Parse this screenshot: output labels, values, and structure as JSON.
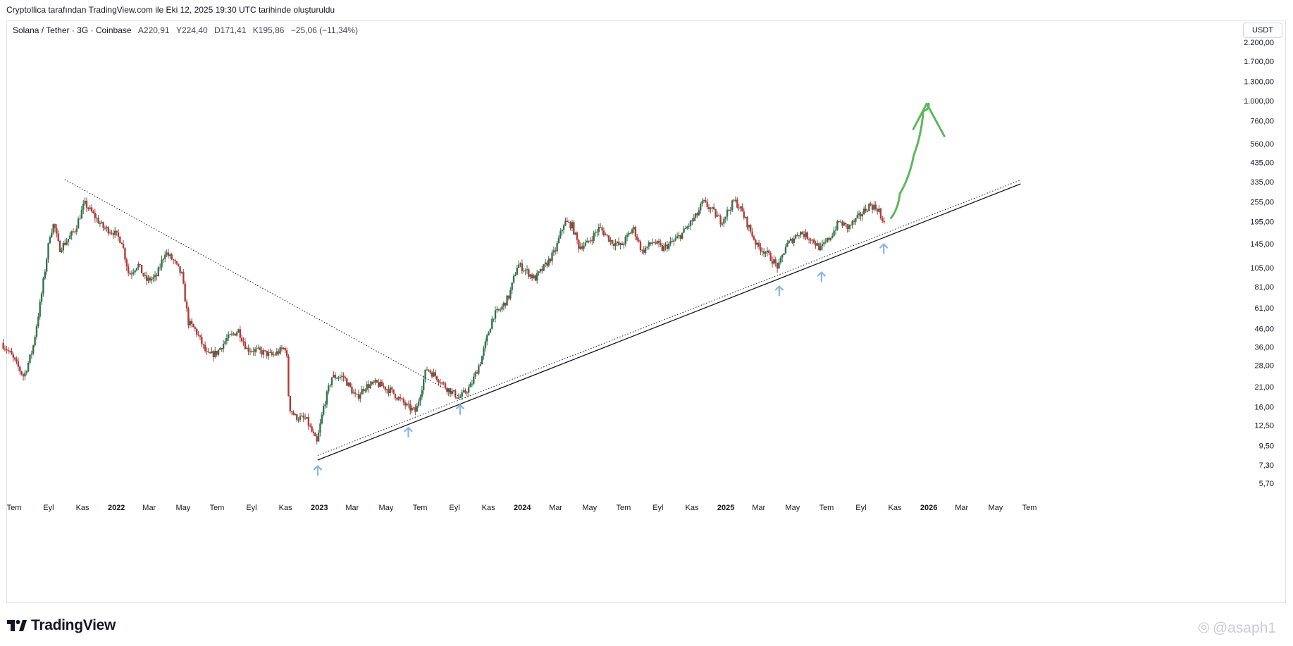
{
  "caption": "Cryptollica tarafından TradingView.com ile Eki 12, 2025 19:30 UTC tarihinde oluşturuldu",
  "legend": {
    "symbol": "Solana / Tether · 3G · Coinbase",
    "open": "A220,91",
    "high": "Y224,40",
    "low": "D171,41",
    "close": "K195,86",
    "change": "−25,06 (−11,34%)"
  },
  "currency": "USDT",
  "brand": "TradingView",
  "watermark": "@asaph1",
  "colors": {
    "up": "#26a69a",
    "down": "#ef5350",
    "candle_up": "#34714b",
    "candle_down": "#b33a3a",
    "trendline": "#131722",
    "arrow_up": "#8fb4e3",
    "projection": "#5cb85c"
  },
  "chart_data": {
    "type": "candlestick",
    "y_scale": "log",
    "y_ticks": [
      "2.200,00",
      "1.700,00",
      "1.300,00",
      "1.000,00",
      "760,00",
      "560,00",
      "435,00",
      "335,00",
      "255,00",
      "195,00",
      "145,00",
      "105,00",
      "81,00",
      "61,00",
      "46,00",
      "36,00",
      "28,00",
      "21,00",
      "16,00",
      "12,50",
      "9,50",
      "7,30",
      "5,70"
    ],
    "y_tick_values": [
      2200,
      1700,
      1300,
      1000,
      760,
      560,
      435,
      335,
      255,
      195,
      145,
      105,
      81,
      61,
      46,
      36,
      28,
      21,
      16,
      12.5,
      9.5,
      7.3,
      5.7
    ],
    "x_ticks": [
      {
        "label": "Tem",
        "date": "2021-07-01",
        "year": false
      },
      {
        "label": "Eyl",
        "date": "2021-09-01",
        "year": false
      },
      {
        "label": "Kas",
        "date": "2021-11-01",
        "year": false
      },
      {
        "label": "2022",
        "date": "2022-01-01",
        "year": true
      },
      {
        "label": "Mar",
        "date": "2022-03-01",
        "year": false
      },
      {
        "label": "May",
        "date": "2022-05-01",
        "year": false
      },
      {
        "label": "Tem",
        "date": "2022-07-01",
        "year": false
      },
      {
        "label": "Eyl",
        "date": "2022-09-01",
        "year": false
      },
      {
        "label": "Kas",
        "date": "2022-11-01",
        "year": false
      },
      {
        "label": "2023",
        "date": "2023-01-01",
        "year": true
      },
      {
        "label": "Mar",
        "date": "2023-03-01",
        "year": false
      },
      {
        "label": "May",
        "date": "2023-05-01",
        "year": false
      },
      {
        "label": "Tem",
        "date": "2023-07-01",
        "year": false
      },
      {
        "label": "Eyl",
        "date": "2023-09-01",
        "year": false
      },
      {
        "label": "Kas",
        "date": "2023-11-01",
        "year": false
      },
      {
        "label": "2024",
        "date": "2024-01-01",
        "year": true
      },
      {
        "label": "Mar",
        "date": "2024-03-01",
        "year": false
      },
      {
        "label": "May",
        "date": "2024-05-01",
        "year": false
      },
      {
        "label": "Tem",
        "date": "2024-07-01",
        "year": false
      },
      {
        "label": "Eyl",
        "date": "2024-09-01",
        "year": false
      },
      {
        "label": "Kas",
        "date": "2024-11-01",
        "year": false
      },
      {
        "label": "2025",
        "date": "2025-01-01",
        "year": true
      },
      {
        "label": "Mar",
        "date": "2025-03-01",
        "year": false
      },
      {
        "label": "May",
        "date": "2025-05-01",
        "year": false
      },
      {
        "label": "Tem",
        "date": "2025-07-01",
        "year": false
      },
      {
        "label": "Eyl",
        "date": "2025-09-01",
        "year": false
      },
      {
        "label": "Kas",
        "date": "2025-11-01",
        "year": false
      },
      {
        "label": "2026",
        "date": "2026-01-01",
        "year": true
      },
      {
        "label": "Mar",
        "date": "2026-03-01",
        "year": false
      },
      {
        "label": "May",
        "date": "2026-05-01",
        "year": false
      },
      {
        "label": "Tem",
        "date": "2026-07-01",
        "year": false
      }
    ],
    "price_path": [
      [
        "2021-06-10",
        38
      ],
      [
        "2021-06-25",
        33
      ],
      [
        "2021-07-20",
        24
      ],
      [
        "2021-08-05",
        35
      ],
      [
        "2021-08-20",
        70
      ],
      [
        "2021-09-05",
        165
      ],
      [
        "2021-09-12",
        190
      ],
      [
        "2021-09-22",
        135
      ],
      [
        "2021-10-05",
        150
      ],
      [
        "2021-10-20",
        175
      ],
      [
        "2021-11-06",
        250
      ],
      [
        "2021-11-22",
        215
      ],
      [
        "2021-12-10",
        180
      ],
      [
        "2021-12-28",
        170
      ],
      [
        "2022-01-12",
        150
      ],
      [
        "2022-01-25",
        95
      ],
      [
        "2022-02-10",
        110
      ],
      [
        "2022-02-25",
        88
      ],
      [
        "2022-03-15",
        92
      ],
      [
        "2022-03-31",
        130
      ],
      [
        "2022-04-15",
        115
      ],
      [
        "2022-04-30",
        95
      ],
      [
        "2022-05-12",
        50
      ],
      [
        "2022-05-25",
        45
      ],
      [
        "2022-06-15",
        32
      ],
      [
        "2022-07-01",
        33
      ],
      [
        "2022-07-20",
        40
      ],
      [
        "2022-08-10",
        45
      ],
      [
        "2022-08-25",
        35
      ],
      [
        "2022-09-15",
        34
      ],
      [
        "2022-10-10",
        32
      ],
      [
        "2022-11-04",
        36
      ],
      [
        "2022-11-09",
        16
      ],
      [
        "2022-11-20",
        14
      ],
      [
        "2022-12-10",
        13.5
      ],
      [
        "2022-12-29",
        9.8
      ],
      [
        "2023-01-10",
        16
      ],
      [
        "2023-01-25",
        24
      ],
      [
        "2023-02-15",
        24
      ],
      [
        "2023-03-10",
        18
      ],
      [
        "2023-03-25",
        21
      ],
      [
        "2023-04-15",
        22
      ],
      [
        "2023-05-10",
        20
      ],
      [
        "2023-06-10",
        16
      ],
      [
        "2023-06-25",
        15
      ],
      [
        "2023-07-14",
        27
      ],
      [
        "2023-08-01",
        24
      ],
      [
        "2023-08-17",
        21
      ],
      [
        "2023-09-11",
        18
      ],
      [
        "2023-10-01",
        21
      ],
      [
        "2023-10-20",
        30
      ],
      [
        "2023-11-11",
        55
      ],
      [
        "2023-11-25",
        60
      ],
      [
        "2023-12-10",
        72
      ],
      [
        "2023-12-25",
        110
      ],
      [
        "2024-01-10",
        100
      ],
      [
        "2024-01-25",
        90
      ],
      [
        "2024-02-10",
        105
      ],
      [
        "2024-03-01",
        130
      ],
      [
        "2024-03-18",
        195
      ],
      [
        "2024-04-01",
        185
      ],
      [
        "2024-04-13",
        140
      ],
      [
        "2024-04-28",
        145
      ],
      [
        "2024-05-20",
        180
      ],
      [
        "2024-06-10",
        150
      ],
      [
        "2024-06-28",
        140
      ],
      [
        "2024-07-20",
        180
      ],
      [
        "2024-08-05",
        130
      ],
      [
        "2024-08-25",
        150
      ],
      [
        "2024-09-10",
        135
      ],
      [
        "2024-10-01",
        150
      ],
      [
        "2024-10-15",
        165
      ],
      [
        "2024-11-12",
        215
      ],
      [
        "2024-11-22",
        255
      ],
      [
        "2024-12-10",
        225
      ],
      [
        "2024-12-25",
        195
      ],
      [
        "2025-01-18",
        260
      ],
      [
        "2025-01-28",
        235
      ],
      [
        "2025-02-10",
        190
      ],
      [
        "2025-02-28",
        140
      ],
      [
        "2025-03-15",
        130
      ],
      [
        "2025-04-07",
        105
      ],
      [
        "2025-04-20",
        140
      ],
      [
        "2025-05-15",
        170
      ],
      [
        "2025-06-05",
        155
      ],
      [
        "2025-06-22",
        135
      ],
      [
        "2025-07-10",
        160
      ],
      [
        "2025-07-25",
        195
      ],
      [
        "2025-08-10",
        180
      ],
      [
        "2025-08-28",
        205
      ],
      [
        "2025-09-18",
        245
      ],
      [
        "2025-10-05",
        230
      ],
      [
        "2025-10-10",
        185
      ],
      [
        "2025-10-12",
        196
      ]
    ],
    "annotations": {
      "downtrend": [
        [
          "2021-09-30",
          345
        ],
        [
          "2023-09-15",
          18
        ]
      ],
      "support_solid": [
        [
          "2022-12-29",
          7.8
        ],
        [
          "2026-06-15",
          325
        ]
      ],
      "support_dotted": [
        [
          "2022-12-29",
          8.3
        ],
        [
          "2026-06-15",
          342
        ]
      ],
      "up_arrows": [
        [
          "2022-12-29",
          6.8
        ],
        [
          "2023-06-10",
          11.4
        ],
        [
          "2023-09-11",
          15.5
        ],
        [
          "2025-04-07",
          77
        ],
        [
          "2025-06-22",
          93
        ],
        [
          "2025-10-12",
          136
        ]
      ],
      "projection": [
        [
          "2025-10-25",
          205
        ],
        [
          "2025-11-10",
          285
        ],
        [
          "2025-12-05",
          480
        ],
        [
          "2025-12-22",
          870
        ],
        [
          "2026-01-01",
          960
        ]
      ]
    }
  }
}
